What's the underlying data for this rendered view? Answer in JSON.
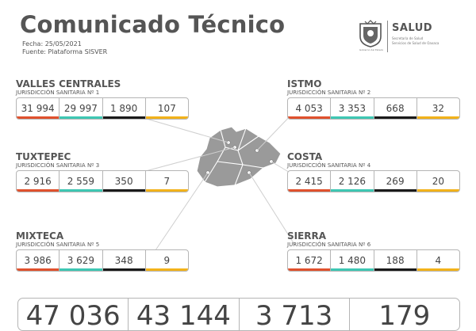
{
  "header": {
    "title": "Comunicado Técnico",
    "fecha": "Fecha: 25/05/2021",
    "fuente": "Fuente: Plataforma SISVER"
  },
  "logo": {
    "caption": "Gobierno del Estado",
    "name": "SALUD",
    "sub1": "Secretaría de Salud",
    "sub2": "Servicios de Salud de Oaxaca"
  },
  "colors": {
    "red": "#e0512d",
    "teal": "#3ec7b3",
    "black": "#1a1a1a",
    "yellow": "#f2b21a"
  },
  "regions": [
    {
      "name": "VALLES CENTRALES",
      "sub": "JURISDICCIÓN SANITARIA Nº 1",
      "values": [
        "31 994",
        "29 997",
        "1 890",
        "107"
      ]
    },
    {
      "name": "ISTMO",
      "sub": "JURISDICCIÓN SANITARIA Nº 2",
      "values": [
        "4 053",
        "3 353",
        "668",
        "32"
      ]
    },
    {
      "name": "TUXTEPEC",
      "sub": "JURISDICCIÓN SANITARIA Nº 3",
      "values": [
        "2 916",
        "2 559",
        "350",
        "7"
      ]
    },
    {
      "name": "COSTA",
      "sub": "JURISDICCIÓN SANITARIA Nº 4",
      "values": [
        "2 415",
        "2 126",
        "269",
        "20"
      ]
    },
    {
      "name": "MIXTECA",
      "sub": "JURISDICCIÓN SANITARIA Nº 5",
      "values": [
        "3 986",
        "3 629",
        "348",
        "9"
      ]
    },
    {
      "name": "SIERRA",
      "sub": "JURISDICCIÓN SANITARIA Nº 6",
      "values": [
        "1 672",
        "1 480",
        "188",
        "4"
      ]
    }
  ],
  "totals": [
    "47 036",
    "43 144",
    "3 713",
    "179"
  ]
}
